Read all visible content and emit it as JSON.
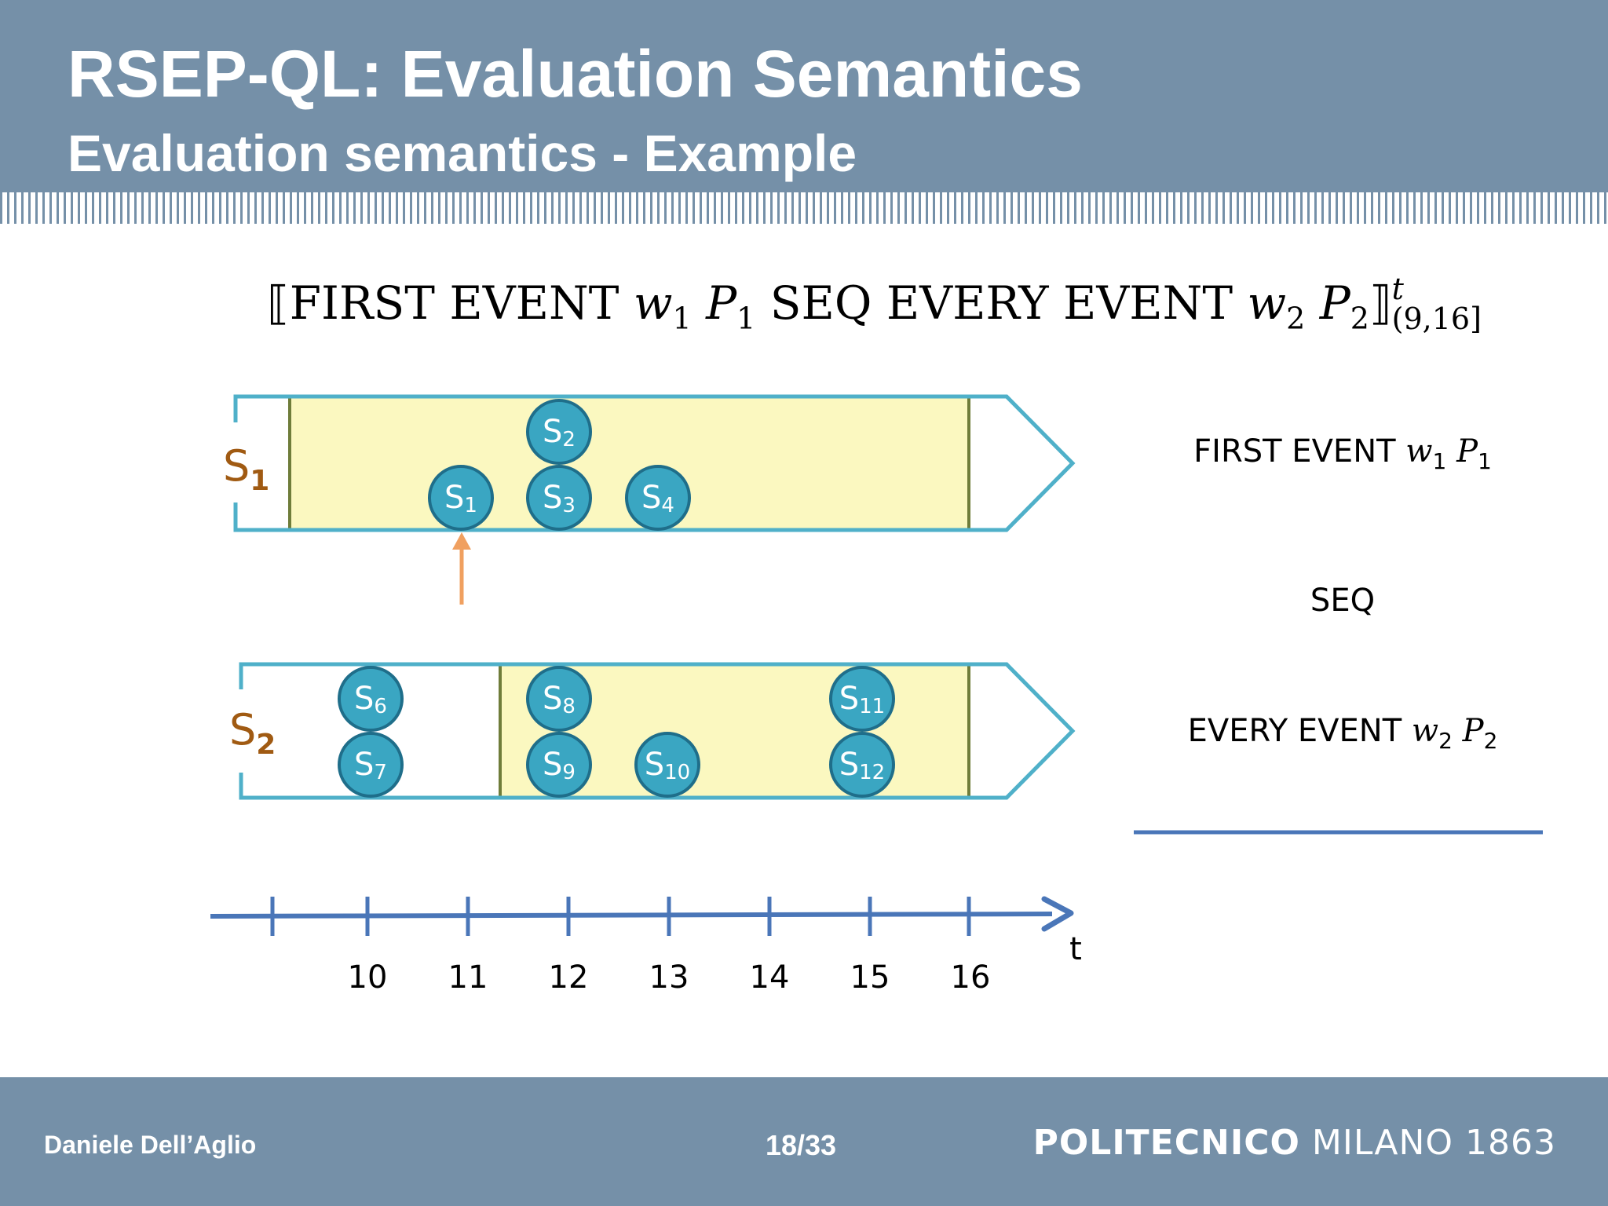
{
  "header": {
    "title": "RSEP-QL: Evaluation Semantics",
    "subtitle": "Evaluation semantics - Example"
  },
  "formula": {
    "open": "⟦",
    "part1": "FIRST EVENT ",
    "w1": "w",
    "w1_sub": "1",
    "p1": "P",
    "p1_sub": "1",
    "part2": " SEQ EVERY EVENT ",
    "w2": "w",
    "w2_sub": "2",
    "p2": "P",
    "p2_sub": "2",
    "close": "⟧",
    "sup": "t",
    "sub": "(9,16]"
  },
  "streams": {
    "s1": {
      "label": "S",
      "sub": "1"
    },
    "s2": {
      "label": "S",
      "sub": "2"
    }
  },
  "events": [
    {
      "label": "S",
      "sub": "1"
    },
    {
      "label": "S",
      "sub": "2"
    },
    {
      "label": "S",
      "sub": "3"
    },
    {
      "label": "S",
      "sub": "4"
    },
    {
      "label": "S",
      "sub": "6"
    },
    {
      "label": "S",
      "sub": "7"
    },
    {
      "label": "S",
      "sub": "8"
    },
    {
      "label": "S",
      "sub": "9"
    },
    {
      "label": "S",
      "sub": "10"
    },
    {
      "label": "S",
      "sub": "11"
    },
    {
      "label": "S",
      "sub": "12"
    }
  ],
  "right_labels": {
    "first_event": {
      "text": "FIRST EVENT ",
      "w": "w",
      "w_sub": "1",
      "p": "P",
      "p_sub": "1"
    },
    "seq": "SEQ",
    "every_event": {
      "text": "EVERY EVENT ",
      "w": "w",
      "w_sub": "2",
      "p": "P",
      "p_sub": "2"
    }
  },
  "axis": {
    "label": "t",
    "ticks": [
      "10",
      "11",
      "12",
      "13",
      "14",
      "15",
      "16"
    ]
  },
  "colors": {
    "header_bg": "#7590a8",
    "window_fill": "#fbf8c0",
    "stream_outline": "#4fb0c9",
    "event_fill": "#3aa6c2",
    "axis": "#4a76b8",
    "arrow": "#f0a060",
    "stream_label": "#a05a12"
  },
  "footer": {
    "author": "Daniele Dell’Aglio",
    "page": "18/33",
    "brand_bold": "POLITECNICO",
    "brand_rest": " MILANO 1863"
  }
}
